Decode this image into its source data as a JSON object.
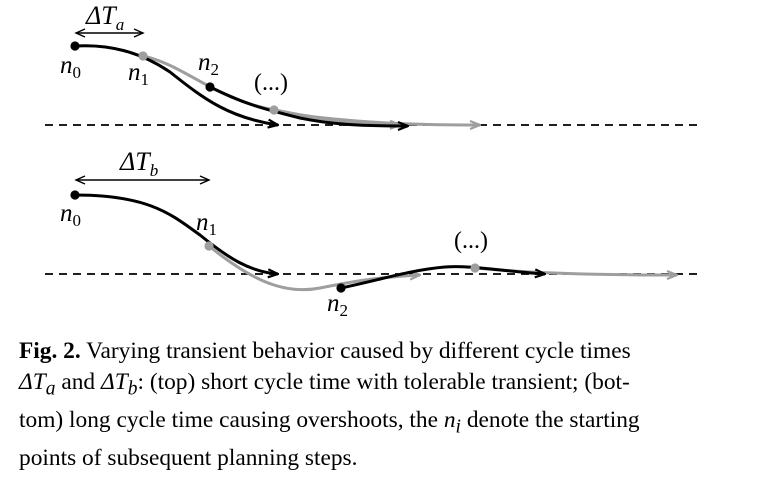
{
  "figure": {
    "top_panel": {
      "interval_label": "ΔT",
      "interval_sub": "a",
      "point_labels": [
        {
          "base": "n",
          "sub": "0"
        },
        {
          "base": "n",
          "sub": "1"
        },
        {
          "base": "n",
          "sub": "2"
        }
      ],
      "ellipsis": "(...)"
    },
    "bottom_panel": {
      "interval_label": "ΔT",
      "interval_sub": "b",
      "point_labels": [
        {
          "base": "n",
          "sub": "0"
        },
        {
          "base": "n",
          "sub": "1"
        },
        {
          "base": "n",
          "sub": "2"
        }
      ],
      "ellipsis": "(...)"
    },
    "colors": {
      "trajectory_primary": "#000000",
      "trajectory_secondary": "#9e9e9e",
      "reference_line": "#000000"
    }
  },
  "caption": {
    "label": "Fig. 2.",
    "p1": "Varying transient behavior caused by different cycle times",
    "p2": "ΔT",
    "p3": "a",
    "p4": " and ",
    "p5": "ΔT",
    "p6": "b",
    "p7": ": (top) short cycle time with tolerable transient; (bot-",
    "p8": "tom) long cycle time causing overshoots, the ",
    "p9": "n",
    "p10": "i",
    "p11": " denote the starting",
    "p12": "points of subsequent planning steps."
  }
}
